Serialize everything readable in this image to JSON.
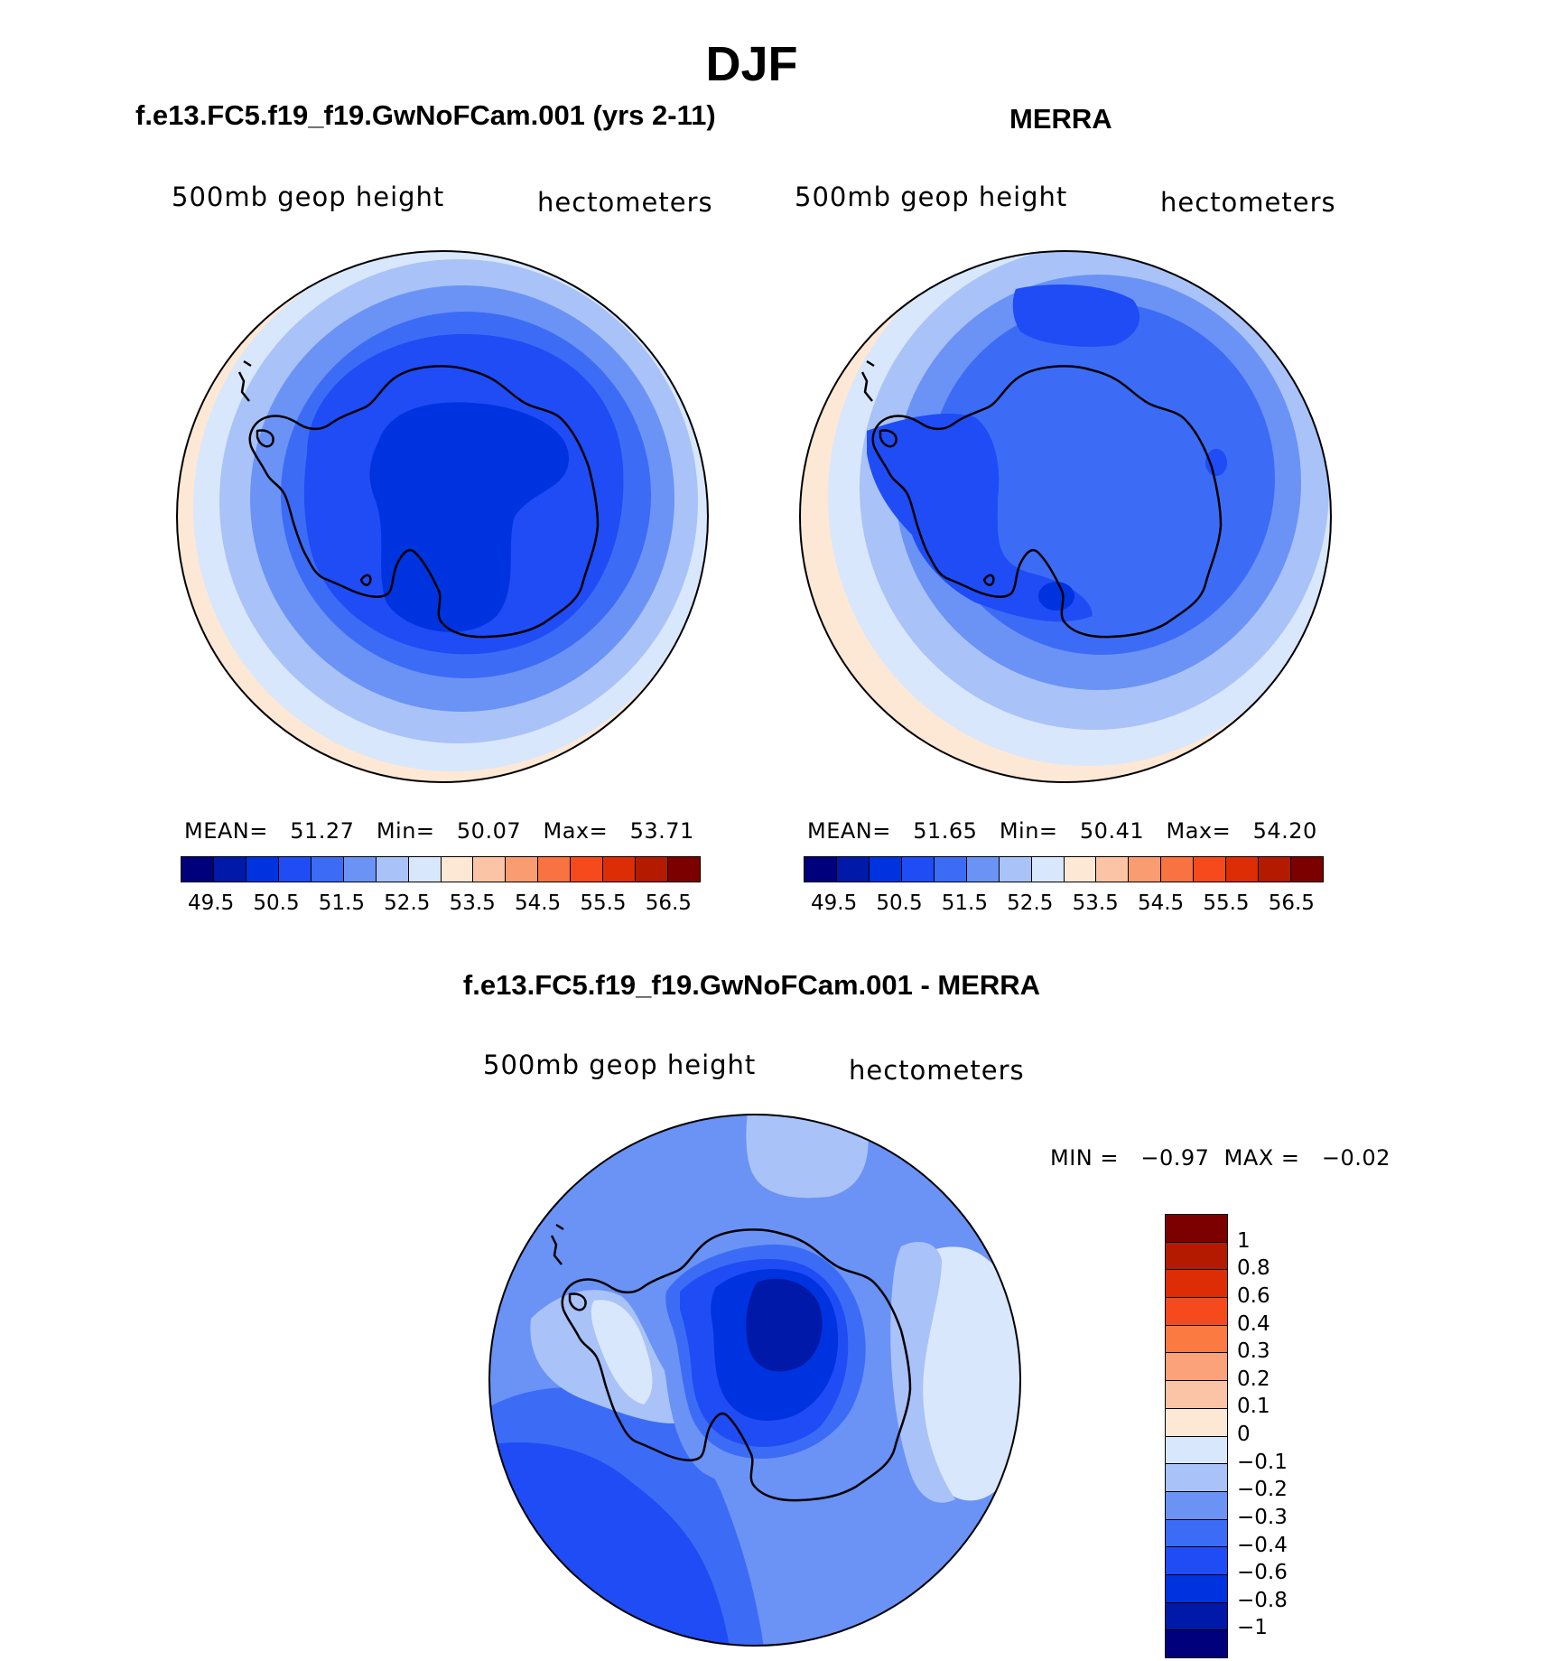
{
  "page": {
    "title": "DJF",
    "left_title": "f.e13.FC5.f19_f19.GwNoFCam.001 (yrs 2-11)",
    "right_title": "MERRA",
    "diff_title": "f.e13.FC5.f19_f19.GwNoFCam.001 - MERRA"
  },
  "panels": [
    {
      "field": "500mb geop height",
      "units": "hectometers",
      "stats_text": "MEAN=   51.27   Min=   50.07   Max=   53.71",
      "mean": 51.27,
      "min": 50.07,
      "max": 53.71
    },
    {
      "field": "500mb geop height",
      "units": "hectometers",
      "stats_text": "MEAN=   51.65   Min=   50.41   Max=   54.20",
      "mean": 51.65,
      "min": 50.41,
      "max": 54.2
    }
  ],
  "abs_colorbar": {
    "colors": [
      "#00007d",
      "#0019a8",
      "#0033e0",
      "#1f4cf5",
      "#3c6cf5",
      "#6a93f5",
      "#a9c2f8",
      "#d8e7fb",
      "#fde8d6",
      "#fcc4a6",
      "#fa9c72",
      "#f87242",
      "#f64a1c",
      "#dc2d06",
      "#b31a00",
      "#7d0000"
    ],
    "tick_labels": [
      "49.5",
      "50.5",
      "51.5",
      "52.5",
      "53.5",
      "54.5",
      "55.5",
      "56.5"
    ]
  },
  "diff_panel": {
    "field": "500mb geop height",
    "units": "hectometers",
    "stats_text": "MIN =   −0.97  MAX =   −0.02",
    "min": -0.97,
    "max": -0.02
  },
  "diff_colorbar": {
    "colors": [
      "#7d0000",
      "#b31a00",
      "#dc2d06",
      "#f64a1c",
      "#fa7a42",
      "#fba27a",
      "#fcc4a6",
      "#fde8d6",
      "#d8e7fb",
      "#a9c2f8",
      "#6a93f5",
      "#3c6cf5",
      "#1f4cf5",
      "#0033e0",
      "#0019a8",
      "#00007d"
    ],
    "labels": [
      "1",
      "0.8",
      "0.6",
      "0.4",
      "0.3",
      "0.2",
      "0.1",
      "0",
      "−0.1",
      "−0.2",
      "−0.3",
      "−0.4",
      "−0.6",
      "−0.8",
      "−1"
    ]
  },
  "map_colors": {
    "c0": "#fde8d6",
    "c1": "#d8e7fb",
    "c2": "#a9c2f8",
    "c3": "#6a93f5",
    "c4": "#3c6cf5",
    "c5": "#1f4cf5",
    "c6": "#0033e0",
    "c7": "#0019a8"
  }
}
